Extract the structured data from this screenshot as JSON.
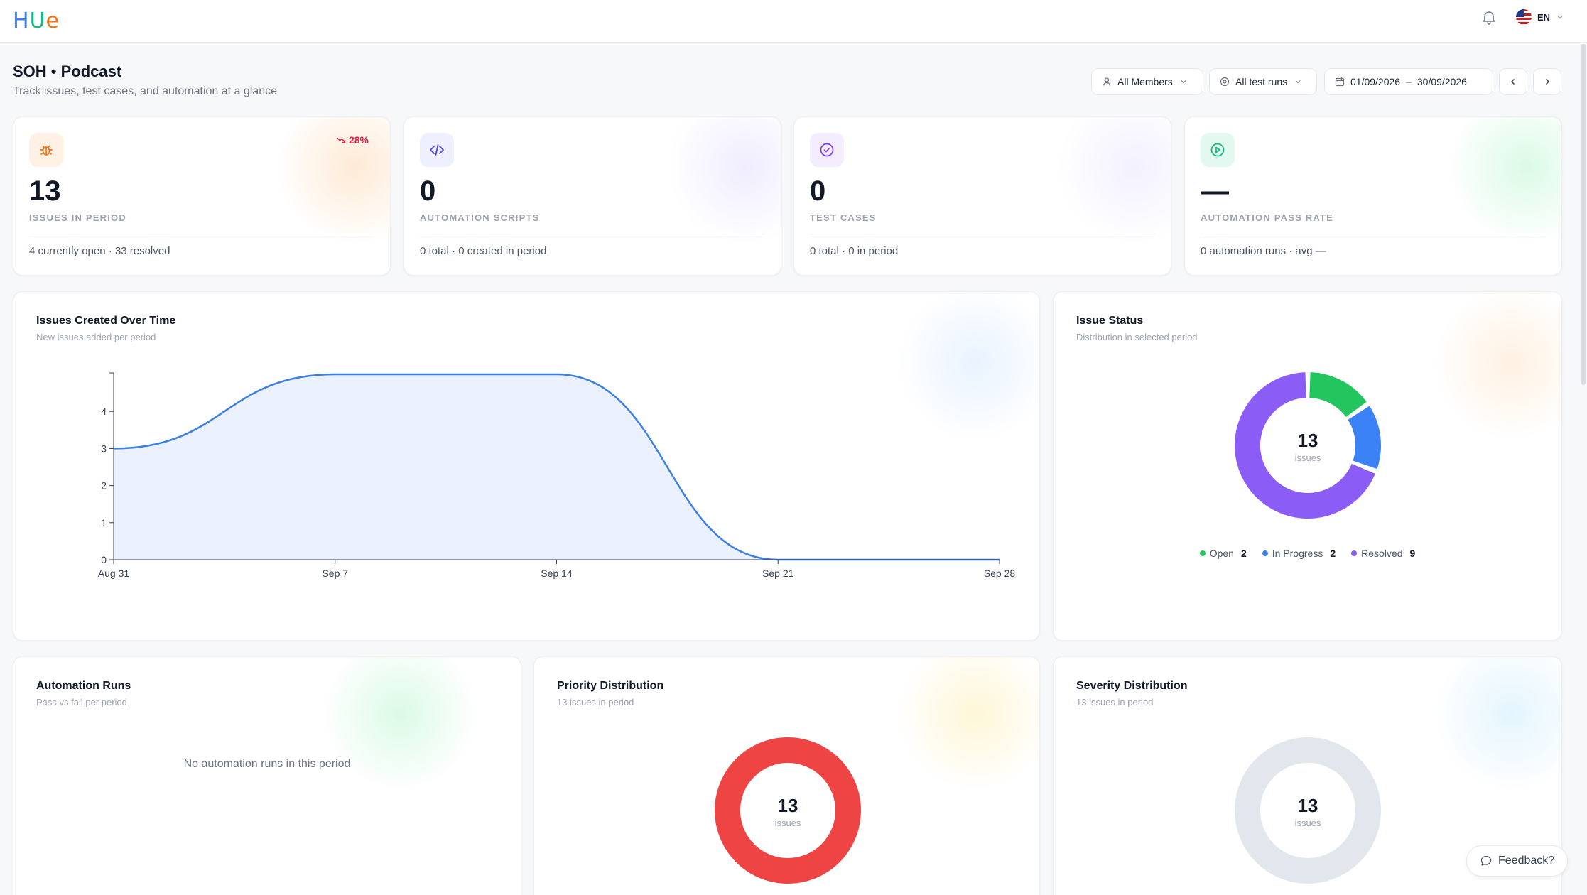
{
  "app": {
    "logo": "Hue"
  },
  "header": {
    "language": "EN"
  },
  "page": {
    "title": "SOH • Podcast",
    "subtitle": "Track issues, test cases, and automation at a glance"
  },
  "filters": {
    "members": "All Members",
    "test_runs": "All test runs",
    "date_from": "01/09/2026",
    "date_sep": "–",
    "date_to": "30/09/2026"
  },
  "stats": [
    {
      "value": "13",
      "label": "ISSUES IN PERIOD",
      "footer": "4 currently open · 33 resolved",
      "trend": "28%",
      "icon": "bug-icon",
      "icon_color": "#f97316",
      "icon_bg": "#fff1e3"
    },
    {
      "value": "0",
      "label": "AUTOMATION SCRIPTS",
      "footer": "0 total · 0 created in period",
      "icon": "code-icon",
      "icon_color": "#4f46e5",
      "icon_bg": "#eef0ff"
    },
    {
      "value": "0",
      "label": "TEST CASES",
      "footer": "0 total · 0 in period",
      "icon": "check-circle-icon",
      "icon_color": "#7c3aed",
      "icon_bg": "#f3edff"
    },
    {
      "value": "—",
      "label": "AUTOMATION PASS RATE",
      "footer": "0 automation runs · avg —",
      "icon": "play-circle-icon",
      "icon_color": "#10b981",
      "icon_bg": "#e3f8ef"
    }
  ],
  "issues_chart": {
    "title": "Issues Created Over Time",
    "subtitle": "New issues added per period"
  },
  "chart_data": [
    {
      "type": "area",
      "title": "Issues Created Over Time",
      "x": [
        "Aug 31",
        "Sep 7",
        "Sep 14",
        "Sep 21",
        "Sep 28"
      ],
      "values": [
        3,
        5,
        5,
        0,
        0
      ],
      "yticks": [
        0,
        1,
        2,
        3,
        4
      ],
      "ylim": [
        0,
        5
      ],
      "color": "#3b7fe0",
      "fill": "#eaf1fd"
    },
    {
      "type": "pie",
      "title": "Issue Status",
      "labels": [
        "Open",
        "In Progress",
        "Resolved"
      ],
      "values": [
        2,
        2,
        9
      ],
      "colors": [
        "#22c55e",
        "#3b82f6",
        "#8b5cf6"
      ],
      "center_value": "13",
      "center_unit": "issues"
    },
    {
      "type": "pie",
      "title": "Priority Distribution",
      "values": [
        13
      ],
      "colors": [
        "#ef4444"
      ],
      "center_value": "13",
      "center_unit": "issues"
    },
    {
      "type": "pie",
      "title": "Severity Distribution",
      "values": [
        13
      ],
      "colors": [
        "#e2e7ee"
      ],
      "center_value": "13",
      "center_unit": "issues"
    }
  ],
  "status_chart": {
    "title": "Issue Status",
    "subtitle": "Distribution in selected period",
    "center_value": "13",
    "center_unit": "issues",
    "legend": [
      {
        "label": "Open",
        "count": "2",
        "color": "#22c55e"
      },
      {
        "label": "In Progress",
        "count": "2",
        "color": "#3b82f6"
      },
      {
        "label": "Resolved",
        "count": "9",
        "color": "#8b5cf6"
      }
    ]
  },
  "automation": {
    "title": "Automation Runs",
    "subtitle": "Pass vs fail per period",
    "empty": "No automation runs in this period"
  },
  "priority": {
    "title": "Priority Distribution",
    "subtitle": "13 issues in period",
    "center_value": "13",
    "center_unit": "issues"
  },
  "severity": {
    "title": "Severity Distribution",
    "subtitle": "13 issues in period",
    "center_value": "13",
    "center_unit": "issues"
  },
  "feedback": {
    "label": "Feedback?"
  }
}
